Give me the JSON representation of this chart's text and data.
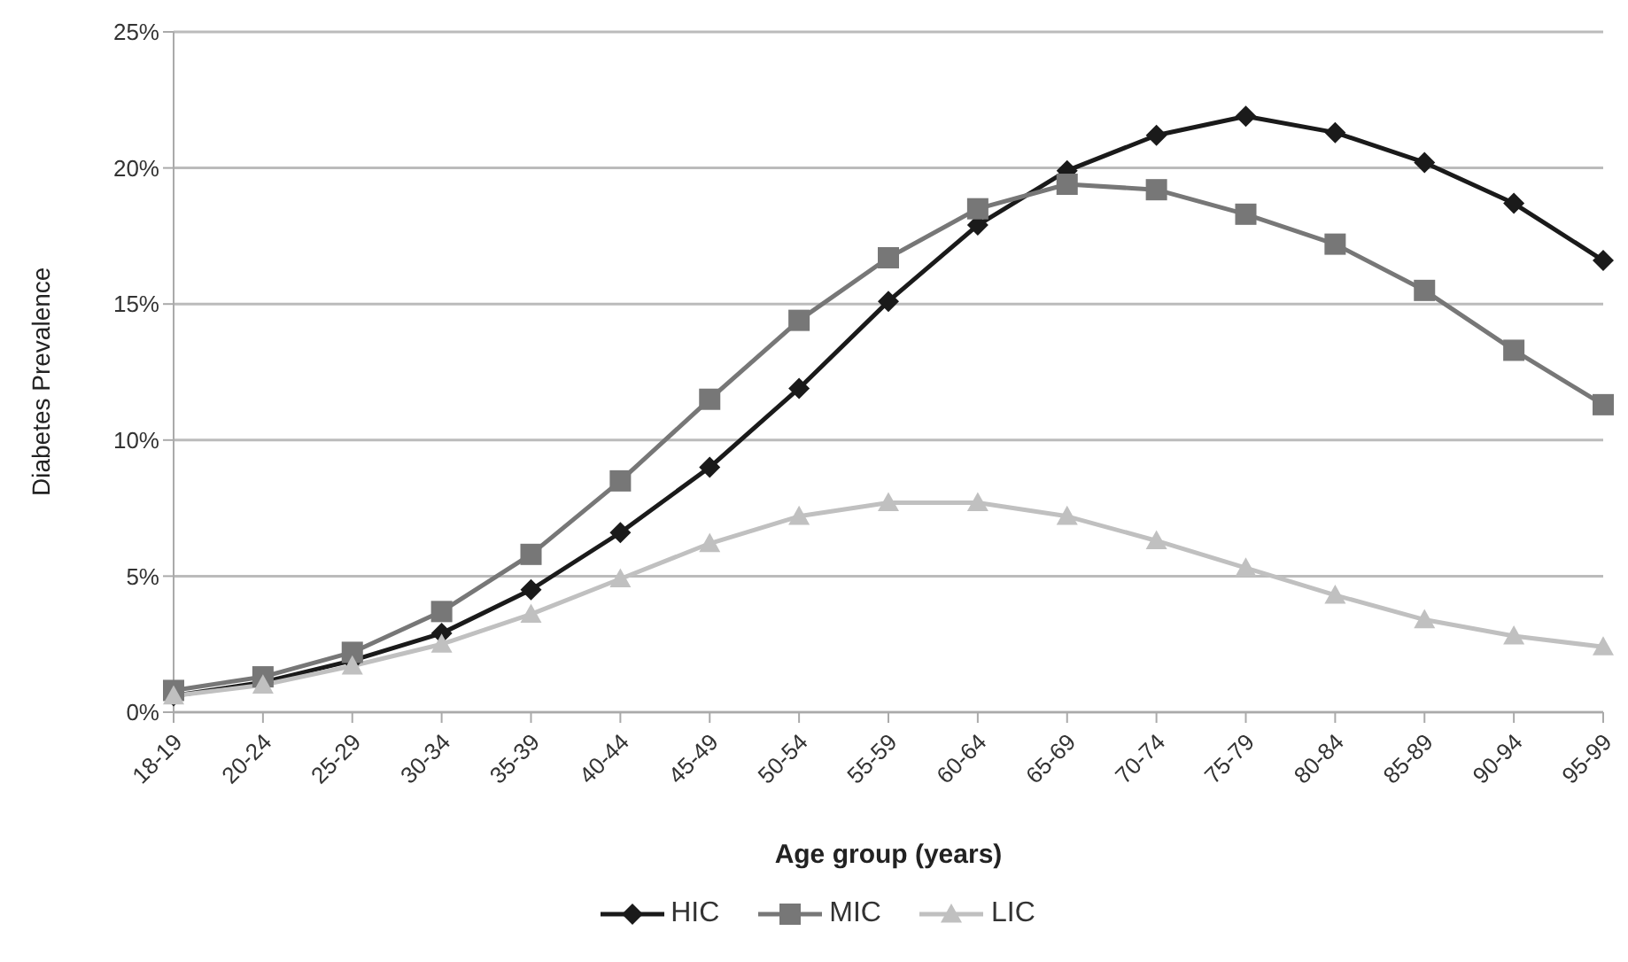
{
  "chart_data": {
    "type": "line",
    "xlabel": "Age group (years)",
    "ylabel": "Diabetes Prevalence",
    "categories": [
      "18-19",
      "20-24",
      "25-29",
      "30-34",
      "35-39",
      "40-44",
      "45-49",
      "50-54",
      "55-59",
      "60-64",
      "65-69",
      "70-74",
      "75-79",
      "80-84",
      "85-89",
      "90-94",
      "95-99"
    ],
    "series": [
      {
        "name": "HIC",
        "color": "#1a1a1a",
        "marker": "diamond",
        "values": [
          0.6,
          1.1,
          1.9,
          2.9,
          4.5,
          6.6,
          9.0,
          11.9,
          15.1,
          17.9,
          19.9,
          21.2,
          21.9,
          21.3,
          20.2,
          18.7,
          16.6
        ]
      },
      {
        "name": "MIC",
        "color": "#777777",
        "marker": "square",
        "values": [
          0.8,
          1.3,
          2.2,
          3.7,
          5.8,
          8.5,
          11.5,
          14.4,
          16.7,
          18.5,
          19.4,
          19.2,
          18.3,
          17.2,
          15.5,
          13.3,
          11.3
        ]
      },
      {
        "name": "LIC",
        "color": "#c0c0c0",
        "marker": "triangle",
        "values": [
          0.6,
          1.0,
          1.7,
          2.5,
          3.6,
          4.9,
          6.2,
          7.2,
          7.7,
          7.7,
          7.2,
          6.3,
          5.3,
          4.3,
          3.4,
          2.8,
          2.4
        ]
      }
    ],
    "ylim": [
      0,
      25
    ],
    "yticks": [
      {
        "value": 0,
        "label": "0%"
      },
      {
        "value": 5,
        "label": "5%"
      },
      {
        "value": 10,
        "label": "10%"
      },
      {
        "value": 15,
        "label": "15%"
      },
      {
        "value": 20,
        "label": "20%"
      },
      {
        "value": 25,
        "label": "25%"
      }
    ],
    "grid": "y",
    "legend": "bottom",
    "line_style": "solid"
  }
}
